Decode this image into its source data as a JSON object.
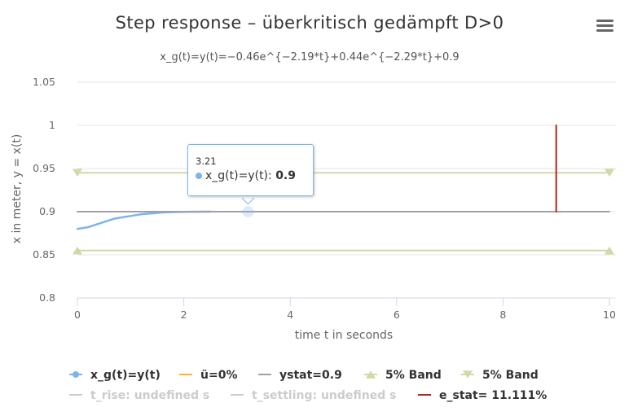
{
  "chart_data": {
    "type": "line",
    "title": "Step response – überkritisch gedämpft D>0",
    "subtitle": "x_g(t)=y(t)=−0.46e^{−2.19*t}+0.44e^{−2.29*t}+0.9",
    "xlabel": "time t in seconds",
    "ylabel": "x in meter, y = x(t)",
    "xlim": [
      0,
      10
    ],
    "ylim": [
      0.8,
      1.05
    ],
    "x_ticks": [
      "0",
      "2",
      "4",
      "6",
      "8",
      "10"
    ],
    "y_ticks": [
      "0.8",
      "0.85",
      "0.9",
      "0.95",
      "1",
      "1.05"
    ],
    "grid": true,
    "series": [
      {
        "name": "x_g(t)=y(t)",
        "color": "#7cb5ec",
        "x": [
          0,
          0.1,
          0.2,
          0.3,
          0.4,
          0.5,
          0.6,
          0.7,
          0.8,
          0.9,
          1.0,
          1.2,
          1.4,
          1.6,
          1.8,
          2.0,
          2.2,
          2.5
        ],
        "y": [
          0.88,
          0.881,
          0.882,
          0.884,
          0.886,
          0.888,
          0.89,
          0.892,
          0.893,
          0.894,
          0.895,
          0.897,
          0.898,
          0.899,
          0.8995,
          0.8998,
          0.8999,
          0.9
        ]
      },
      {
        "name": "ü=0%",
        "color": "#f7b531",
        "x": [],
        "y": []
      },
      {
        "name": "ystat=0.9",
        "color": "#a29fa8",
        "x": [
          0,
          10
        ],
        "y": [
          0.9,
          0.9
        ]
      },
      {
        "name": "5% Band",
        "color": "#d4d8a6",
        "marker": "triangle",
        "x": [
          0,
          10
        ],
        "y": [
          0.855,
          0.855
        ]
      },
      {
        "name": "5% Band",
        "color": "#d4d8a6",
        "marker": "triangle-down",
        "x": [
          0,
          10
        ],
        "y": [
          0.945,
          0.945
        ]
      },
      {
        "name": "t_rise: undefined s",
        "color": "#cccccc",
        "hidden": true,
        "x": [],
        "y": []
      },
      {
        "name": "t_settling: undefined s",
        "color": "#cccccc",
        "hidden": true,
        "x": [],
        "y": []
      },
      {
        "name": "e_stat= 11.111%",
        "color": "#b1271c",
        "x": [
          9,
          9
        ],
        "y": [
          0.9,
          1.0
        ]
      }
    ],
    "tooltip": {
      "x_label": "3.21",
      "series_name": "x_g(t)=y(t)",
      "value": "0.9",
      "x": 3.21,
      "y": 0.9
    },
    "legend_position": "bottom"
  }
}
